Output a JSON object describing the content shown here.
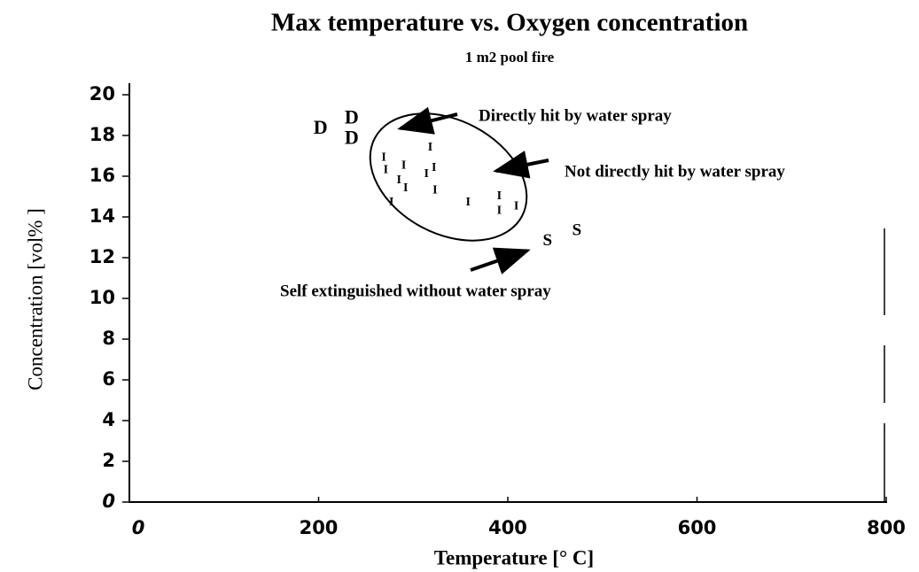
{
  "chart_data": {
    "type": "scatter",
    "title": "Max temperature vs. Oxygen concentration",
    "subtitle": "1 m2 pool fire",
    "xlabel": "Temperature [° C]",
    "ylabel": "Concentration [vol% ]",
    "xlim": [
      0,
      800
    ],
    "xticks": [
      0,
      200,
      400,
      600,
      800
    ],
    "ylim": [
      0,
      20
    ],
    "yticks": [
      0,
      2,
      4,
      6,
      8,
      10,
      12,
      14,
      16,
      18,
      20
    ],
    "series": [
      {
        "marker": "D",
        "x": [
          202,
          235,
          235
        ],
        "values": [
          18.3,
          18.8,
          17.8
        ]
      },
      {
        "marker": "I",
        "x": [
          269,
          271,
          277,
          285,
          290,
          292,
          314,
          318,
          322,
          323,
          358,
          391,
          391,
          409
        ],
        "values": [
          16.9,
          16.3,
          14.7,
          15.8,
          16.5,
          15.4,
          16.1,
          17.4,
          16.4,
          15.3,
          14.7,
          15.0,
          14.3,
          14.5
        ]
      },
      {
        "marker": "S",
        "x": [
          442,
          473
        ],
        "values": [
          12.8,
          13.3
        ]
      }
    ],
    "annotations": [
      "Directly hit by water spray",
      "Not directly hit by water spray",
      "Self extinguished without water spray"
    ]
  }
}
